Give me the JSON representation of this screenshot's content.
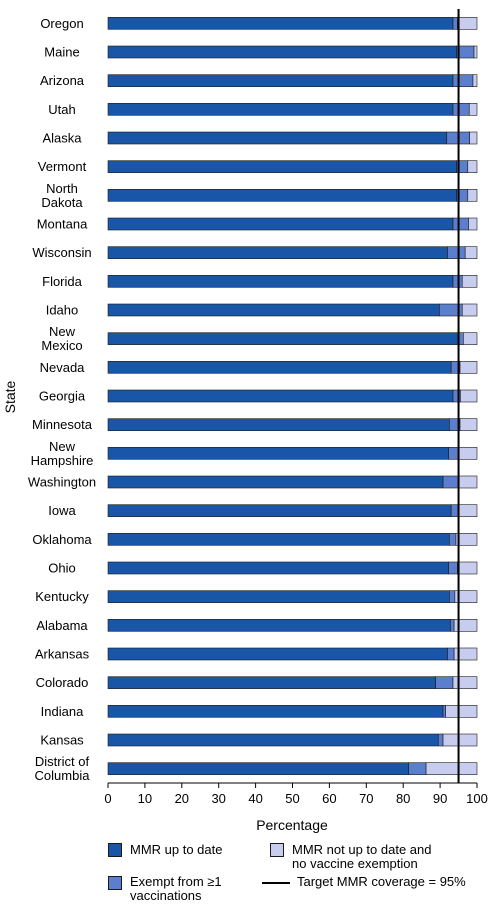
{
  "chart_data": {
    "type": "bar",
    "orientation": "horizontal",
    "stacked": true,
    "ylabel": "State",
    "xlabel": "Percentage",
    "xlim": [
      0,
      100
    ],
    "xticks": [
      0,
      10,
      20,
      30,
      40,
      50,
      60,
      70,
      80,
      90,
      100
    ],
    "categories": [
      [
        "Oregon"
      ],
      [
        "Maine"
      ],
      [
        "Arizona"
      ],
      [
        "Utah"
      ],
      [
        "Alaska"
      ],
      [
        "Vermont"
      ],
      [
        "North",
        "Dakota"
      ],
      [
        "Montana"
      ],
      [
        "Wisconsin"
      ],
      [
        "Florida"
      ],
      [
        "Idaho"
      ],
      [
        "New",
        "Mexico"
      ],
      [
        "Nevada"
      ],
      [
        "Georgia"
      ],
      [
        "Minnesota"
      ],
      [
        "New",
        "Hampshire"
      ],
      [
        "Washington"
      ],
      [
        "Iowa"
      ],
      [
        "Oklahoma"
      ],
      [
        "Ohio"
      ],
      [
        "Kentucky"
      ],
      [
        "Alabama"
      ],
      [
        "Arkansas"
      ],
      [
        "Colorado"
      ],
      [
        "Indiana"
      ],
      [
        "Kansas"
      ],
      [
        "District of",
        "Columbia"
      ]
    ],
    "series": [
      {
        "name": "MMR up to date",
        "color": "#1a56a8",
        "values": [
          93.5,
          94.5,
          93.5,
          93.5,
          91.8,
          94.5,
          94.5,
          93.5,
          92.0,
          93.5,
          89.8,
          94.8,
          93.0,
          93.5,
          92.5,
          92.3,
          90.8,
          93.0,
          92.5,
          92.3,
          92.5,
          92.8,
          92.0,
          88.8,
          90.8,
          89.5,
          81.5
        ]
      },
      {
        "name": "Exempt from ≥1 vaccinations",
        "color": "#5b7fcc",
        "values": [
          1.2,
          4.7,
          5.4,
          4.4,
          6.2,
          3.0,
          3.0,
          4.2,
          4.8,
          2.5,
          6.2,
          1.5,
          2.4,
          2.0,
          2.9,
          2.7,
          4.2,
          1.8,
          1.8,
          2.4,
          1.5,
          1.0,
          1.8,
          4.7,
          0.7,
          1.3,
          4.7
        ]
      },
      {
        "name": "MMR not up to date and no vaccine exemption",
        "color": "#c8ccee",
        "values": [
          5.3,
          0.8,
          1.1,
          2.1,
          2.0,
          2.5,
          2.5,
          2.3,
          3.2,
          4.0,
          4.0,
          3.7,
          4.6,
          4.5,
          4.6,
          5.0,
          5.0,
          5.2,
          5.7,
          5.3,
          6.0,
          6.2,
          6.2,
          6.5,
          8.5,
          9.2,
          13.8
        ]
      }
    ],
    "target_line": {
      "value": 95,
      "label": "Target MMR coverage = 95%"
    },
    "legend": {
      "position": "bottom",
      "items": [
        {
          "label": [
            "MMR up to date"
          ],
          "swatch": "series-0"
        },
        {
          "label": [
            "MMR not up to date and",
            "no vaccine exemption"
          ],
          "swatch": "series-2"
        },
        {
          "label": [
            "Exempt from ≥1",
            "vaccinations"
          ],
          "swatch": "series-1"
        },
        {
          "label": [
            "Target MMR coverage = 95%"
          ],
          "swatch": "line"
        }
      ]
    }
  }
}
